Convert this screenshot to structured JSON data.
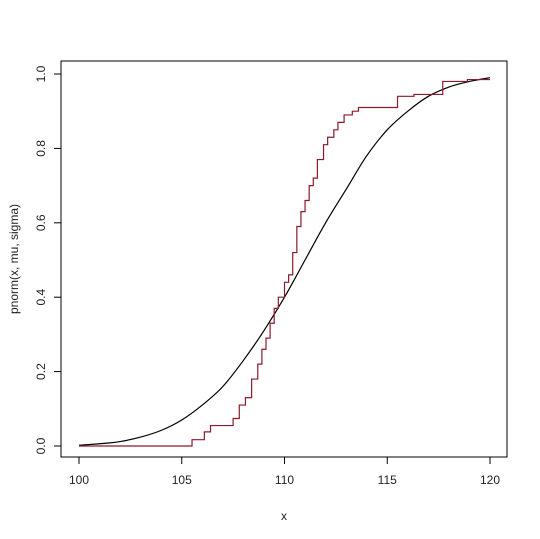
{
  "chart_data": {
    "type": "line",
    "title": "",
    "xlabel": "x",
    "ylabel": "pnorm(x, mu, sigma)",
    "xlim": [
      100,
      120
    ],
    "ylim": [
      0,
      1
    ],
    "x_ticks": [
      "100",
      "105",
      "110",
      "115",
      "120"
    ],
    "y_ticks": [
      "0.0",
      "0.2",
      "0.4",
      "0.6",
      "0.8",
      "1.0"
    ],
    "grid": false,
    "legend": "none",
    "series": [
      {
        "kind": "smooth",
        "color": "#000000",
        "x": [
          100,
          101,
          102,
          103,
          104,
          105,
          106,
          107,
          108,
          109,
          110,
          111,
          112,
          113,
          114,
          115,
          116,
          117,
          118,
          119,
          120
        ],
        "y": [
          0.002,
          0.006,
          0.012,
          0.024,
          0.042,
          0.07,
          0.11,
          0.16,
          0.23,
          0.31,
          0.4,
          0.5,
          0.6,
          0.69,
          0.78,
          0.85,
          0.9,
          0.94,
          0.965,
          0.98,
          0.99
        ]
      },
      {
        "kind": "step",
        "color": "#8b1a2b",
        "x": [
          100,
          105.5,
          106.1,
          106.4,
          107.5,
          107.8,
          108.1,
          108.4,
          108.7,
          108.9,
          109.1,
          109.3,
          109.5,
          109.7,
          110.0,
          110.2,
          110.4,
          110.6,
          110.8,
          111.0,
          111.2,
          111.4,
          111.6,
          111.9,
          112.1,
          112.4,
          112.6,
          112.9,
          113.3,
          113.6,
          115.5,
          116.3,
          117.7,
          118.9,
          120
        ],
        "y": [
          0.0,
          0.017,
          0.038,
          0.055,
          0.074,
          0.11,
          0.13,
          0.18,
          0.22,
          0.26,
          0.29,
          0.33,
          0.37,
          0.4,
          0.44,
          0.46,
          0.52,
          0.59,
          0.63,
          0.66,
          0.7,
          0.72,
          0.77,
          0.81,
          0.83,
          0.85,
          0.87,
          0.89,
          0.9,
          0.91,
          0.94,
          0.945,
          0.98,
          0.985,
          0.985
        ]
      }
    ]
  }
}
